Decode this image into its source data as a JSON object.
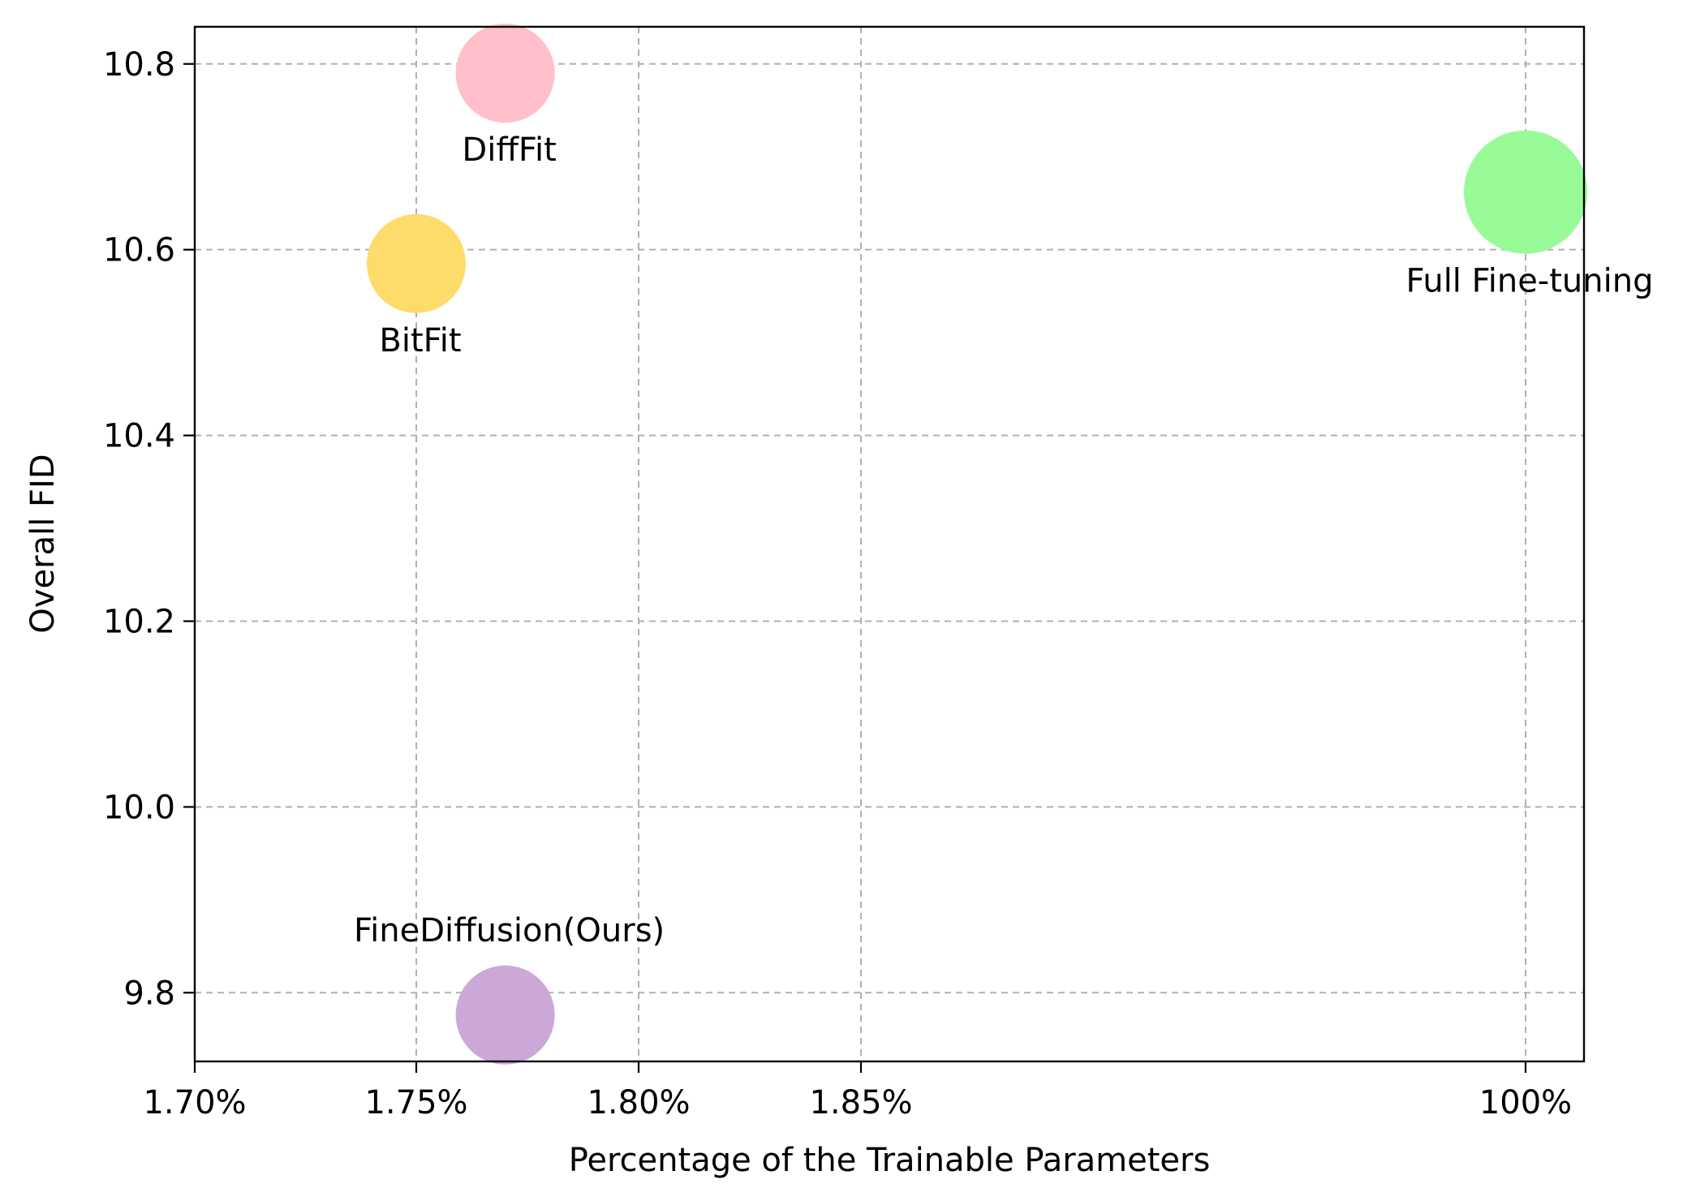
{
  "chart_data": {
    "type": "scatter",
    "title": "",
    "xlabel": "Percentage of the Trainable Parameters",
    "ylabel": "Overall FID",
    "x_scale": "categorical-positions",
    "x_ticks": [
      "1.70%",
      "1.75%",
      "1.80%",
      "1.85%",
      "100%"
    ],
    "y_ticks": [
      "9.8",
      "10.0",
      "10.2",
      "10.4",
      "10.6",
      "10.8"
    ],
    "ylim": [
      9.726,
      10.84
    ],
    "grid": true,
    "legend": "none",
    "points": [
      {
        "label": "DiffFit",
        "x": "1.77%",
        "y": 10.79,
        "color": "#ffc0cb",
        "size": "medium"
      },
      {
        "label": "BitFit",
        "x": "1.75%",
        "y": 10.585,
        "color": "#fddc6c",
        "size": "medium"
      },
      {
        "label": "Full Fine-tuning",
        "x": "100%",
        "y": 10.662,
        "color": "#98fb98",
        "size": "large"
      },
      {
        "label": "FineDiffusion(Ours)",
        "x": "1.77%",
        "y": 9.776,
        "color": "#cba8d8",
        "size": "medium"
      }
    ]
  }
}
